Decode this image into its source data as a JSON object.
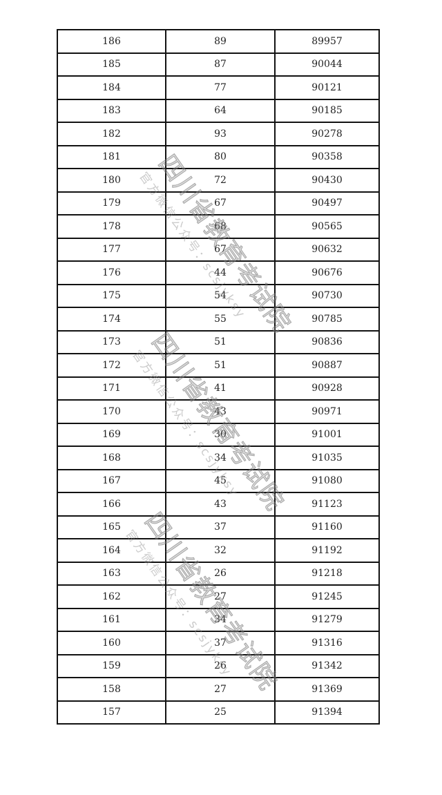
{
  "table": {
    "rows": [
      [
        "186",
        "89",
        "89957"
      ],
      [
        "185",
        "87",
        "90044"
      ],
      [
        "184",
        "77",
        "90121"
      ],
      [
        "183",
        "64",
        "90185"
      ],
      [
        "182",
        "93",
        "90278"
      ],
      [
        "181",
        "80",
        "90358"
      ],
      [
        "180",
        "72",
        "90430"
      ],
      [
        "179",
        "67",
        "90497"
      ],
      [
        "178",
        "68",
        "90565"
      ],
      [
        "177",
        "67",
        "90632"
      ],
      [
        "176",
        "44",
        "90676"
      ],
      [
        "175",
        "54",
        "90730"
      ],
      [
        "174",
        "55",
        "90785"
      ],
      [
        "173",
        "51",
        "90836"
      ],
      [
        "172",
        "51",
        "90887"
      ],
      [
        "171",
        "41",
        "90928"
      ],
      [
        "170",
        "43",
        "90971"
      ],
      [
        "169",
        "30",
        "91001"
      ],
      [
        "168",
        "34",
        "91035"
      ],
      [
        "167",
        "45",
        "91080"
      ],
      [
        "166",
        "43",
        "91123"
      ],
      [
        "165",
        "37",
        "91160"
      ],
      [
        "164",
        "32",
        "91192"
      ],
      [
        "163",
        "26",
        "91218"
      ],
      [
        "162",
        "27",
        "91245"
      ],
      [
        "161",
        "34",
        "91279"
      ],
      [
        "160",
        "37",
        "91316"
      ],
      [
        "159",
        "26",
        "91342"
      ],
      [
        "158",
        "27",
        "91369"
      ],
      [
        "157",
        "25",
        "91394"
      ]
    ]
  },
  "watermark": {
    "line1": "四川省教育考试院",
    "line2": "官方微信公众号：scsjyksy"
  }
}
